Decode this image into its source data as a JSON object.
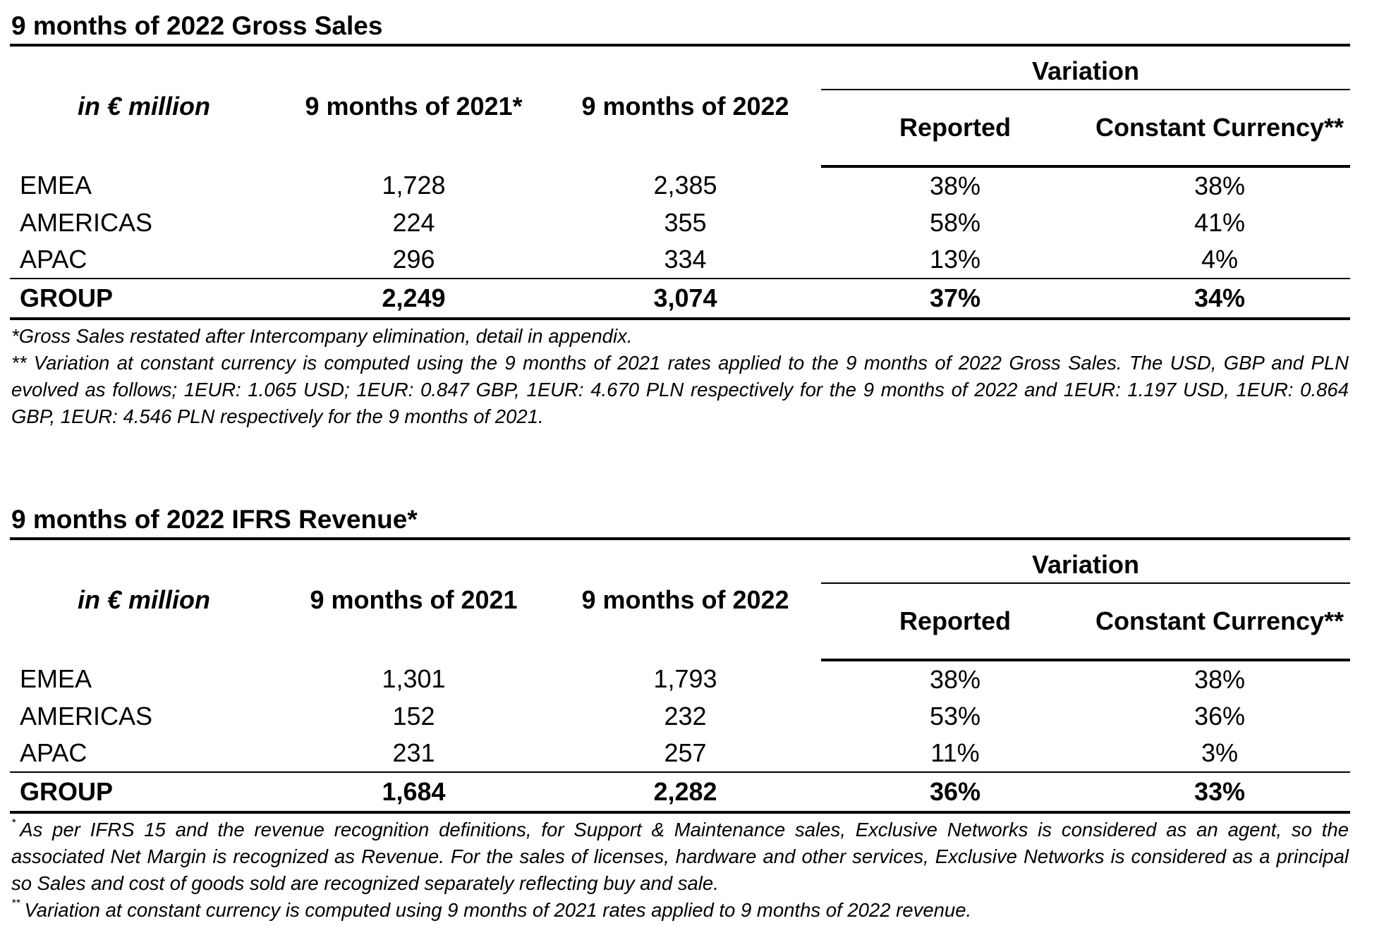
{
  "gross_sales": {
    "title": "9 months of 2022 Gross Sales",
    "headers": {
      "label": "in € million",
      "col1": "9 months of 2021*",
      "col2": "9 months of 2022",
      "variation": "Variation",
      "reported": "Reported",
      "constant": "Constant Currency**"
    },
    "rows": [
      {
        "region": "EMEA",
        "v2021": "1,728",
        "v2022": "2,385",
        "reported": "38%",
        "constant": "38%"
      },
      {
        "region": "AMERICAS",
        "v2021": "224",
        "v2022": "355",
        "reported": "58%",
        "constant": "41%"
      },
      {
        "region": "APAC",
        "v2021": "296",
        "v2022": "334",
        "reported": "13%",
        "constant": "4%"
      }
    ],
    "total": {
      "region": "GROUP",
      "v2021": "2,249",
      "v2022": "3,074",
      "reported": "37%",
      "constant": "34%"
    },
    "notes": [
      "*Gross Sales restated after Intercompany elimination, detail in appendix.",
      "** Variation at constant currency is computed using the 9 months of 2021 rates applied to the 9 months of 2022 Gross Sales. The USD, GBP and PLN evolved as follows; 1EUR: 1.065 USD; 1EUR: 0.847 GBP, 1EUR: 4.670 PLN respectively for the 9 months of 2022 and 1EUR: 1.197 USD, 1EUR: 0.864 GBP, 1EUR: 4.546 PLN respectively for the 9 months of 2021."
    ]
  },
  "ifrs_revenue": {
    "title": "9 months of 2022 IFRS Revenue*",
    "headers": {
      "label": "in € million",
      "col1": "9 months of 2021",
      "col2": "9 months of 2022",
      "variation": "Variation",
      "reported": "Reported",
      "constant": "Constant Currency**"
    },
    "rows": [
      {
        "region": "EMEA",
        "v2021": "1,301",
        "v2022": "1,793",
        "reported": "38%",
        "constant": "38%"
      },
      {
        "region": "AMERICAS",
        "v2021": "152",
        "v2022": "232",
        "reported": "53%",
        "constant": "36%"
      },
      {
        "region": "APAC",
        "v2021": "231",
        "v2022": "257",
        "reported": "11%",
        "constant": "3%"
      }
    ],
    "total": {
      "region": "GROUP",
      "v2021": "1,684",
      "v2022": "2,282",
      "reported": "36%",
      "constant": "33%"
    },
    "notes": [
      {
        "marker": "*",
        "text": "As per IFRS 15 and the revenue recognition definitions, for Support & Maintenance sales, Exclusive Networks is considered as an agent, so the associated Net Margin is recognized as Revenue. For the sales of licenses, hardware and other services, Exclusive Networks is considered as a principal so Sales and cost of goods sold are recognized separately reflecting buy and sale."
      },
      {
        "marker": "**",
        "text": "Variation at constant currency is computed using 9 months of 2021 rates applied to 9 months of 2022 revenue."
      }
    ]
  }
}
